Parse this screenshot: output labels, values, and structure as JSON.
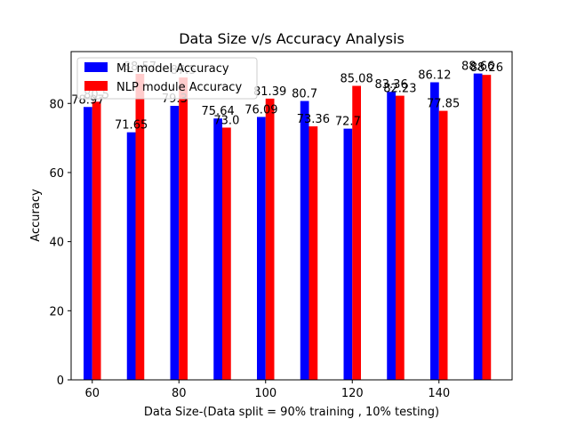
{
  "chart_data": {
    "type": "bar",
    "title": "Data Size v/s Accuracy Analysis",
    "xlabel": "Data Size-(Data split = 90% training , 10% testing)",
    "ylabel": "Accuracy",
    "x": [
      60,
      70,
      80,
      90,
      100,
      110,
      120,
      130,
      140,
      150
    ],
    "series": [
      {
        "name": "ML model Accuracy",
        "color": "#0000ff",
        "values": [
          78.97,
          71.65,
          79.3,
          75.64,
          76.09,
          80.7,
          72.7,
          83.36,
          86.12,
          88.66
        ],
        "labels": [
          "78.97",
          "71.65",
          "79.3",
          "75.64",
          "76.09",
          "80.7",
          "72.7",
          "83.36",
          "86.12",
          "88.66"
        ]
      },
      {
        "name": "NLP module Accuracy",
        "color": "#ff0000",
        "values": [
          80.5,
          88.57,
          87.5,
          73.0,
          81.39,
          73.36,
          85.08,
          82.23,
          77.85,
          88.26
        ],
        "labels": [
          "80.5",
          "88.57",
          "87.5",
          "73.0",
          "81.39",
          "73.36",
          "85.08",
          "82.23",
          "77.85",
          "88.26"
        ]
      }
    ],
    "xticks": [
      60,
      80,
      100,
      120,
      140
    ],
    "xtick_labels": [
      "60",
      "80",
      "100",
      "120",
      "140"
    ],
    "yticks": [
      0,
      20,
      40,
      60,
      80
    ],
    "ytick_labels": [
      "0",
      "20",
      "40",
      "60",
      "80"
    ],
    "xlim": [
      55.125,
      156.875
    ],
    "ylim": [
      0,
      95
    ],
    "grid": false,
    "legend_position": "upper-left"
  }
}
